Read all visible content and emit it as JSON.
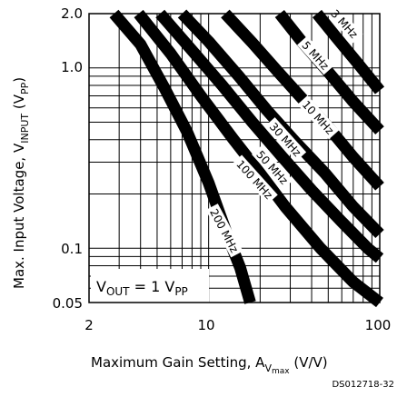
{
  "chart_data": {
    "type": "line",
    "title": "",
    "xlabel": "Maximum Gain Setting, A_Vmax (V/V)",
    "ylabel": "Max. Input Voltage, V_INPUT (V_PP)",
    "x_scale": "log",
    "y_scale": "log",
    "xlim": [
      2,
      100
    ],
    "ylim": [
      0.05,
      2.0
    ],
    "grid": true,
    "x_tick_labels": [
      "2",
      "10",
      "100"
    ],
    "y_tick_labels": [
      "2.0",
      "1.0",
      "0.1",
      "0.05"
    ],
    "annotation": "V_OUT = 1 V_PP",
    "series": [
      {
        "name": "200 MHz",
        "x": [
          2.8,
          4.0,
          5.5,
          7.5,
          10.0,
          13.0,
          15.3,
          17.5
        ],
        "y": [
          2.0,
          1.35,
          0.78,
          0.44,
          0.23,
          0.115,
          0.078,
          0.05
        ]
      },
      {
        "name": "100 MHz",
        "x": [
          3.9,
          6.0,
          9.0,
          14.0,
          20.0,
          28.0,
          45.0,
          70.0,
          100.0
        ],
        "y": [
          2.0,
          1.2,
          0.7,
          0.4,
          0.26,
          0.17,
          0.1,
          0.065,
          0.05
        ]
      },
      {
        "name": "50 MHz",
        "x": [
          5.2,
          8.0,
          12.0,
          18.0,
          27.0,
          40.0,
          60.0,
          85.0,
          100.0
        ],
        "y": [
          2.0,
          1.25,
          0.8,
          0.5,
          0.32,
          0.21,
          0.14,
          0.1,
          0.088
        ]
      },
      {
        "name": "30 MHz",
        "x": [
          7.0,
          10.0,
          15.0,
          22.0,
          32.0,
          48.0,
          70.0,
          100.0
        ],
        "y": [
          2.0,
          1.4,
          0.9,
          0.58,
          0.39,
          0.26,
          0.17,
          0.12
        ]
      },
      {
        "name": "10 MHz",
        "x": [
          12.5,
          18.0,
          25.0,
          35.0,
          50.0,
          70.0,
          100.0
        ],
        "y": [
          2.0,
          1.38,
          0.97,
          0.68,
          0.47,
          0.32,
          0.22
        ]
      },
      {
        "name": "5 MHz",
        "x": [
          26.0,
          35.0,
          50.0,
          70.0,
          100.0
        ],
        "y": [
          2.0,
          1.4,
          0.95,
          0.65,
          0.45
        ]
      },
      {
        "name": "3 MHz",
        "x": [
          43.0,
          55.0,
          75.0,
          100.0
        ],
        "y": [
          2.0,
          1.5,
          1.05,
          0.75
        ]
      }
    ],
    "curve_labels": [
      {
        "text": "3 MHz",
        "x": 62,
        "y": 1.75,
        "angle": 48
      },
      {
        "text": "5 MHz",
        "x": 42,
        "y": 1.17,
        "angle": 48
      },
      {
        "text": "10 MHz",
        "x": 43.5,
        "y": 0.53,
        "angle": 48
      },
      {
        "text": "30 MHz",
        "x": 28,
        "y": 0.4,
        "angle": 48
      },
      {
        "text": "50 MHz",
        "x": 23.5,
        "y": 0.28,
        "angle": 48
      },
      {
        "text": "100 MHz",
        "x": 18.5,
        "y": 0.24,
        "angle": 48
      },
      {
        "text": "200 MHz",
        "x": 12.3,
        "y": 0.125,
        "angle": 62
      }
    ]
  },
  "figure_code": "DS012718-32"
}
